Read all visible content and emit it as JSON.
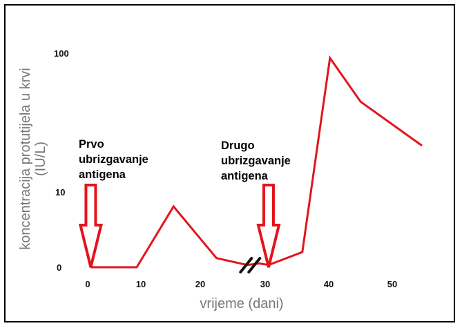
{
  "chart_data": {
    "type": "line",
    "title": "",
    "xlabel": "vrijeme (dani)",
    "ylabel": "koncentracija protutijela u krvi",
    "ylabel_unit": "(IU/L)",
    "x_ticks": [
      "0",
      "10",
      "20",
      "30",
      "40",
      "50"
    ],
    "y_ticks": [
      "0",
      "10",
      "100"
    ],
    "xlim": [
      0,
      55
    ],
    "series": [
      {
        "color": "#e3141d",
        "x": [
          0.5,
          8,
          14,
          21,
          26,
          28,
          29.5,
          35,
          39.5,
          44.5,
          54.5
        ],
        "y": [
          0,
          0,
          8,
          1.2,
          0.3,
          0.5,
          0.3,
          2,
          100,
          47,
          22
        ]
      }
    ],
    "annotations": [
      {
        "lines": [
          "Prvo",
          "ubrizgavanje",
          "antigena"
        ],
        "x": 0.5
      },
      {
        "lines": [
          "Drugo",
          "ubrizgavanje",
          "antigena"
        ],
        "x": 29.5
      }
    ],
    "axis_break_x": 26.5,
    "grid": false,
    "legend": "none"
  }
}
